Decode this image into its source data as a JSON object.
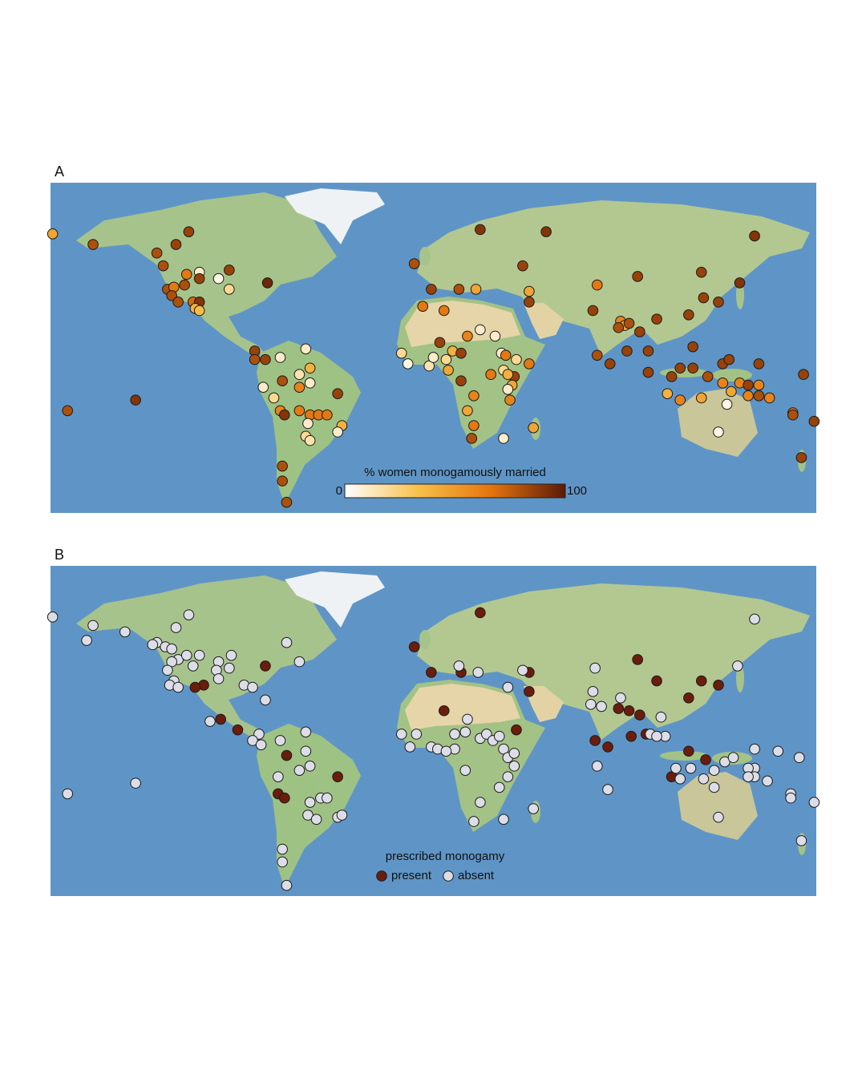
{
  "chart_data": [
    {
      "type": "map",
      "label": "A",
      "xlim": [
        -180,
        180
      ],
      "ylim": [
        -70,
        85
      ],
      "colorbar": {
        "title": "% women monogamously married",
        "clim": [
          0,
          100
        ],
        "colors": [
          "#ffffff",
          "#f8c04a",
          "#e4740e",
          "#5a1907"
        ]
      },
      "points": [
        [
          -179,
          61,
          45
        ],
        [
          -160,
          56,
          80
        ],
        [
          -115,
          62,
          85
        ],
        [
          -121,
          56,
          85
        ],
        [
          -130,
          52,
          80
        ],
        [
          -127,
          46,
          80
        ],
        [
          -116,
          42,
          65
        ],
        [
          -110,
          43,
          10
        ],
        [
          -96,
          44,
          85
        ],
        [
          -101,
          40,
          5
        ],
        [
          -96,
          35,
          20
        ],
        [
          -110,
          40,
          85
        ],
        [
          -117,
          37,
          80
        ],
        [
          -125,
          35,
          80
        ],
        [
          -122,
          36,
          65
        ],
        [
          -123,
          32,
          80
        ],
        [
          -120,
          29,
          80
        ],
        [
          -113,
          29,
          70
        ],
        [
          -110,
          29,
          90
        ],
        [
          -112,
          26,
          40
        ],
        [
          -110,
          25,
          35
        ],
        [
          -78,
          38,
          95
        ],
        [
          -84,
          6,
          85
        ],
        [
          -79,
          2,
          85
        ],
        [
          -84,
          2,
          80
        ],
        [
          -72,
          3,
          10
        ],
        [
          -60,
          7,
          10
        ],
        [
          -71,
          -8,
          80
        ],
        [
          -80,
          -11,
          10
        ],
        [
          -75,
          -16,
          20
        ],
        [
          -63,
          -5,
          15
        ],
        [
          -58,
          -2,
          40
        ],
        [
          -58,
          -9,
          10
        ],
        [
          -63,
          -11,
          60
        ],
        [
          -72,
          -22,
          60
        ],
        [
          -70,
          -24,
          90
        ],
        [
          -63,
          -22,
          65
        ],
        [
          -58,
          -24,
          65
        ],
        [
          -54,
          -24,
          65
        ],
        [
          -50,
          -24,
          65
        ],
        [
          -45,
          -14,
          85
        ],
        [
          -59,
          -28,
          10
        ],
        [
          -43,
          -29,
          40
        ],
        [
          -45,
          -32,
          10
        ],
        [
          -60,
          -34,
          20
        ],
        [
          -58,
          -36,
          15
        ],
        [
          -71,
          -48,
          80
        ],
        [
          -71,
          -55,
          80
        ],
        [
          -69,
          -65,
          80
        ],
        [
          -172,
          -22,
          80
        ],
        [
          -140,
          -17,
          90
        ],
        [
          -9,
          47,
          80
        ],
        [
          -1,
          35,
          85
        ],
        [
          -5,
          27,
          65
        ],
        [
          12,
          35,
          80
        ],
        [
          20,
          35,
          45
        ],
        [
          22,
          63,
          90
        ],
        [
          53,
          62,
          90
        ],
        [
          42,
          46,
          85
        ],
        [
          45,
          34,
          45
        ],
        [
          45,
          29,
          85
        ],
        [
          77,
          37,
          65
        ],
        [
          96,
          41,
          85
        ],
        [
          126,
          43,
          85
        ],
        [
          151,
          60,
          90
        ],
        [
          144,
          38,
          90
        ],
        [
          134,
          29,
          85
        ],
        [
          127,
          31,
          85
        ],
        [
          120,
          23,
          85
        ],
        [
          105,
          21,
          85
        ],
        [
          75,
          25,
          85
        ],
        [
          88,
          20,
          60
        ],
        [
          90,
          18,
          45
        ],
        [
          87,
          17,
          80
        ],
        [
          92,
          19,
          80
        ],
        [
          97,
          15,
          85
        ],
        [
          77,
          4,
          80
        ],
        [
          83,
          0,
          85
        ],
        [
          91,
          6,
          85
        ],
        [
          101,
          6,
          85
        ],
        [
          101,
          -4,
          85
        ],
        [
          122,
          8,
          85
        ],
        [
          122,
          -2,
          85
        ],
        [
          129,
          -6,
          80
        ],
        [
          136,
          0,
          85
        ],
        [
          139,
          2,
          85
        ],
        [
          136,
          -9,
          60
        ],
        [
          144,
          -9,
          60
        ],
        [
          140,
          -13,
          45
        ],
        [
          148,
          -10,
          85
        ],
        [
          153,
          -10,
          60
        ],
        [
          148,
          -15,
          60
        ],
        [
          153,
          -15,
          80
        ],
        [
          158,
          -16,
          60
        ],
        [
          153,
          0,
          85
        ],
        [
          174,
          -5,
          85
        ],
        [
          169,
          -23,
          65
        ],
        [
          169,
          -24,
          80
        ],
        [
          179,
          -27,
          85
        ],
        [
          173,
          -44,
          85
        ],
        [
          138,
          -19,
          5
        ],
        [
          134,
          -32,
          5
        ],
        [
          112,
          -6,
          85
        ],
        [
          110,
          -14,
          40
        ],
        [
          116,
          -17,
          60
        ],
        [
          126,
          -16,
          45
        ],
        [
          116,
          -2,
          85
        ],
        [
          -15,
          5,
          20
        ],
        [
          -12,
          0,
          5
        ],
        [
          -2,
          -1,
          15
        ],
        [
          0,
          3,
          10
        ],
        [
          6,
          2,
          20
        ],
        [
          9,
          6,
          40
        ],
        [
          7,
          -3,
          45
        ],
        [
          3,
          10,
          85
        ],
        [
          16,
          13,
          60
        ],
        [
          29,
          13,
          10
        ],
        [
          32,
          5,
          10
        ],
        [
          34,
          4,
          65
        ],
        [
          39,
          2,
          20
        ],
        [
          45,
          0,
          65
        ],
        [
          33,
          -3,
          20
        ],
        [
          38,
          -6,
          85
        ],
        [
          37,
          -10,
          45
        ],
        [
          35,
          -12,
          10
        ],
        [
          35,
          -5,
          40
        ],
        [
          36,
          -17,
          60
        ],
        [
          27,
          -5,
          65
        ],
        [
          19,
          -15,
          60
        ],
        [
          16,
          -22,
          45
        ],
        [
          19,
          -29,
          65
        ],
        [
          18,
          -35,
          80
        ],
        [
          33,
          -35,
          10
        ],
        [
          47,
          -30,
          45
        ],
        [
          13,
          -8,
          85
        ],
        [
          5,
          25,
          65
        ],
        [
          22,
          16,
          10
        ],
        [
          13,
          5,
          85
        ]
      ]
    },
    {
      "type": "map",
      "label": "B",
      "xlim": [
        -180,
        180
      ],
      "ylim": [
        -70,
        85
      ],
      "legend_title": "prescribed monogamy",
      "series": [
        {
          "name": "present",
          "color": "#6b1d0c",
          "points": [
            [
              22,
              63
            ],
            [
              -9,
              47
            ],
            [
              -1,
              35
            ],
            [
              13,
              35
            ],
            [
              45,
              26
            ],
            [
              5,
              17
            ],
            [
              39,
              8
            ],
            [
              96,
              41
            ],
            [
              126,
              31
            ],
            [
              134,
              29
            ],
            [
              120,
              23
            ],
            [
              105,
              31
            ],
            [
              92,
              17
            ],
            [
              97,
              15
            ],
            [
              87,
              18
            ],
            [
              76,
              3
            ],
            [
              82,
              0
            ],
            [
              93,
              5
            ],
            [
              100,
              6
            ],
            [
              120,
              -2
            ],
            [
              128,
              -6
            ],
            [
              112,
              -14
            ],
            [
              -79,
              38
            ],
            [
              -108,
              29
            ],
            [
              -112,
              28
            ],
            [
              -100,
              13
            ],
            [
              -92,
              8
            ],
            [
              -69,
              -4
            ],
            [
              -73,
              -22
            ],
            [
              -70,
              -24
            ],
            [
              -45,
              -14
            ],
            [
              45,
              35
            ]
          ]
        },
        {
          "name": "absent",
          "color": "#dcdde6",
          "points": [
            [
              -179,
              61
            ],
            [
              -160,
              57
            ],
            [
              -163,
              50
            ],
            [
              -145,
              54
            ],
            [
              -115,
              62
            ],
            [
              -121,
              56
            ],
            [
              -130,
              49
            ],
            [
              -132,
              48
            ],
            [
              -126,
              47
            ],
            [
              -123,
              46
            ],
            [
              -120,
              41
            ],
            [
              -116,
              43
            ],
            [
              -123,
              40
            ],
            [
              -125,
              36
            ],
            [
              -122,
              31
            ],
            [
              -124,
              29
            ],
            [
              -120,
              28
            ],
            [
              -113,
              38
            ],
            [
              -110,
              43
            ],
            [
              -101,
              40
            ],
            [
              -102,
              36
            ],
            [
              -101,
              32
            ],
            [
              -96,
              37
            ],
            [
              -95,
              43
            ],
            [
              -89,
              29
            ],
            [
              -85,
              28
            ],
            [
              -69,
              49
            ],
            [
              -63,
              40
            ],
            [
              -79,
              22
            ],
            [
              -105,
              12
            ],
            [
              -82,
              6
            ],
            [
              -85,
              3
            ],
            [
              -72,
              3
            ],
            [
              -60,
              7
            ],
            [
              -81,
              1
            ],
            [
              -60,
              -2
            ],
            [
              -58,
              -9
            ],
            [
              -63,
              -11
            ],
            [
              -73,
              -14
            ],
            [
              -53,
              -24
            ],
            [
              -50,
              -24
            ],
            [
              -58,
              -26
            ],
            [
              -59,
              -32
            ],
            [
              -55,
              -34
            ],
            [
              -45,
              -33
            ],
            [
              -43,
              -32
            ],
            [
              -71,
              -48
            ],
            [
              -71,
              -54
            ],
            [
              -69,
              -65
            ],
            [
              -172,
              -22
            ],
            [
              -140,
              -17
            ],
            [
              12,
              38
            ],
            [
              21,
              35
            ],
            [
              42,
              36
            ],
            [
              35,
              28
            ],
            [
              76,
              37
            ],
            [
              75,
              26
            ],
            [
              74,
              20
            ],
            [
              88,
              23
            ],
            [
              79,
              19
            ],
            [
              107,
              14
            ],
            [
              109,
              5
            ],
            [
              102,
              6
            ],
            [
              105,
              5
            ],
            [
              -15,
              6
            ],
            [
              -8,
              6
            ],
            [
              -11,
              0
            ],
            [
              -1,
              0
            ],
            [
              2,
              -1
            ],
            [
              10,
              6
            ],
            [
              10,
              -1
            ],
            [
              6,
              -2
            ],
            [
              16,
              13
            ],
            [
              15,
              7
            ],
            [
              22,
              4
            ],
            [
              25,
              6
            ],
            [
              28,
              3
            ],
            [
              31,
              5
            ],
            [
              33,
              -1
            ],
            [
              35,
              -5
            ],
            [
              38,
              -3
            ],
            [
              38,
              -9
            ],
            [
              35,
              -14
            ],
            [
              31,
              -19
            ],
            [
              15,
              -11
            ],
            [
              22,
              -26
            ],
            [
              19,
              -35
            ],
            [
              33,
              -34
            ],
            [
              47,
              -29
            ],
            [
              77,
              -9
            ],
            [
              82,
              -20
            ],
            [
              114,
              -10
            ],
            [
              116,
              -15
            ],
            [
              121,
              -10
            ],
            [
              127,
              -15
            ],
            [
              132,
              -11
            ],
            [
              137,
              -7
            ],
            [
              141,
              -5
            ],
            [
              151,
              -1
            ],
            [
              151,
              -10
            ],
            [
              148,
              -10
            ],
            [
              151,
              -14
            ],
            [
              148,
              -14
            ],
            [
              157,
              -16
            ],
            [
              162,
              -2
            ],
            [
              172,
              -5
            ],
            [
              168,
              -22
            ],
            [
              168,
              -24
            ],
            [
              179,
              -26
            ],
            [
              173,
              -44
            ],
            [
              134,
              -33
            ],
            [
              132,
              -19
            ],
            [
              151,
              60
            ],
            [
              143,
              38
            ]
          ]
        }
      ]
    }
  ]
}
